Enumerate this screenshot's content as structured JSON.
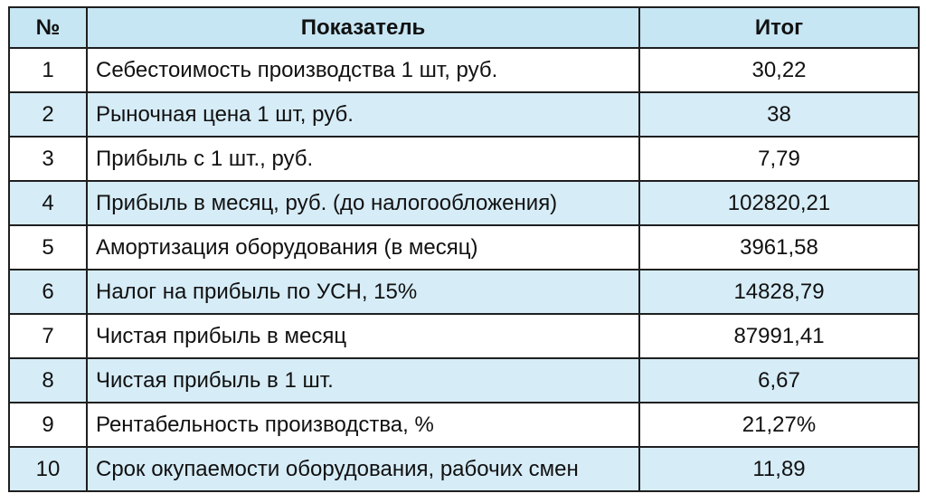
{
  "table": {
    "headers": {
      "num": "№",
      "indicator": "Показатель",
      "total": "Итог"
    },
    "rows": [
      {
        "num": "1",
        "indicator": "Себестоимость производства 1 шт, руб.",
        "total": "30,22"
      },
      {
        "num": "2",
        "indicator": "Рыночная цена 1 шт, руб.",
        "total": "38"
      },
      {
        "num": "3",
        "indicator": "Прибыль с 1 шт., руб.",
        "total": "7,79"
      },
      {
        "num": "4",
        "indicator": "Прибыль в месяц, руб. (до налогообложения)",
        "total": "102820,21"
      },
      {
        "num": "5",
        "indicator": "Амортизация оборудования (в месяц)",
        "total": "3961,58"
      },
      {
        "num": "6",
        "indicator": "Налог на прибыль по УСН, 15%",
        "total": "14828,79"
      },
      {
        "num": "7",
        "indicator": "Чистая прибыль в месяц",
        "total": "87991,41"
      },
      {
        "num": "8",
        "indicator": "Чистая прибыль в 1 шт.",
        "total": "6,67"
      },
      {
        "num": "9",
        "indicator": "Рентабельность производства, %",
        "total": "21,27%"
      },
      {
        "num": "10",
        "indicator": "Срок окупаемости оборудования, рабочих смен",
        "total": "11,89"
      }
    ]
  },
  "colors": {
    "header_bg": "#c7e6f4",
    "alt_row_bg": "#d6ecf7",
    "row_bg": "#ffffff",
    "border": "#1f1f1f"
  }
}
